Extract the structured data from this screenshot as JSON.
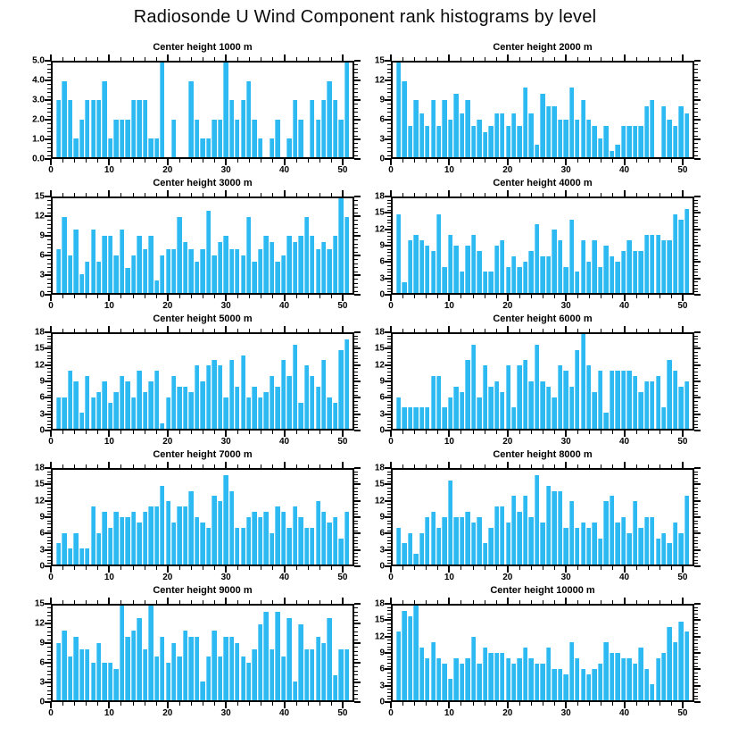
{
  "figure": {
    "title": "Radiosonde U Wind Component rank histograms by level"
  },
  "style": {
    "bar_color": "#2db9f1",
    "axis_color": "#000000",
    "background": "#ffffff"
  },
  "chart_data": [
    {
      "type": "bar",
      "title": "Center height 1000 m",
      "xlim": [
        0,
        52
      ],
      "xticks": [
        0,
        10,
        20,
        30,
        40,
        50
      ],
      "x_minor_step": 2,
      "ylim": [
        0,
        5
      ],
      "ytick_labels": [
        "0.0",
        "1.0",
        "2.0",
        "3.0",
        "4.0",
        "5.0"
      ],
      "ytick_values": [
        0,
        1,
        2,
        3,
        4,
        5
      ],
      "values": [
        3,
        4,
        3,
        1,
        2,
        3,
        3,
        3,
        4,
        1,
        2,
        2,
        2,
        3,
        3,
        3,
        1,
        1,
        5,
        0,
        2,
        0,
        0,
        4,
        2,
        1,
        1,
        2,
        2,
        5,
        3,
        2,
        3,
        4,
        2,
        1,
        0,
        1,
        2,
        0,
        1,
        3,
        2,
        0,
        3,
        2,
        3,
        4,
        3,
        2,
        5
      ]
    },
    {
      "type": "bar",
      "title": "Center height 2000 m",
      "xlim": [
        0,
        52
      ],
      "xticks": [
        0,
        10,
        20,
        30,
        40,
        50
      ],
      "x_minor_step": 2,
      "ylim": [
        0,
        15
      ],
      "ytick_labels": [
        "0",
        "3",
        "6",
        "9",
        "12",
        "15"
      ],
      "ytick_values": [
        0,
        3,
        6,
        9,
        12,
        15
      ],
      "values": [
        15,
        12,
        5,
        9,
        7,
        5,
        9,
        5,
        9,
        6,
        10,
        7,
        9,
        5,
        6,
        4,
        5,
        7,
        7,
        5,
        7,
        5,
        11,
        7,
        2,
        10,
        8,
        8,
        6,
        6,
        11,
        6,
        9,
        6,
        5,
        3,
        5,
        1,
        2,
        5,
        5,
        5,
        5,
        8,
        9,
        0,
        8,
        6,
        5,
        8,
        7
      ]
    },
    {
      "type": "bar",
      "title": "Center height 3000 m",
      "xlim": [
        0,
        52
      ],
      "xticks": [
        0,
        10,
        20,
        30,
        40,
        50
      ],
      "x_minor_step": 2,
      "ylim": [
        0,
        15
      ],
      "ytick_labels": [
        "0",
        "3",
        "6",
        "9",
        "12",
        "15"
      ],
      "ytick_values": [
        0,
        3,
        6,
        9,
        12,
        15
      ],
      "values": [
        7,
        12,
        6,
        10,
        3,
        5,
        10,
        5,
        9,
        9,
        6,
        10,
        4,
        6,
        9,
        7,
        9,
        2,
        6,
        7,
        7,
        12,
        8,
        7,
        5,
        7,
        13,
        6,
        8,
        9,
        7,
        7,
        6,
        12,
        5,
        7,
        9,
        8,
        5,
        6,
        9,
        8,
        9,
        12,
        9,
        7,
        8,
        7,
        9,
        15,
        12
      ]
    },
    {
      "type": "bar",
      "title": "Center height 4000 m",
      "xlim": [
        0,
        52
      ],
      "xticks": [
        0,
        10,
        20,
        30,
        40,
        50
      ],
      "x_minor_step": 2,
      "ylim": [
        0,
        18
      ],
      "ytick_labels": [
        "0",
        "3",
        "6",
        "9",
        "12",
        "15",
        "18"
      ],
      "ytick_values": [
        0,
        3,
        6,
        9,
        12,
        15,
        18
      ],
      "values": [
        15,
        2,
        10,
        11,
        10,
        9,
        8,
        15,
        5,
        11,
        9,
        4,
        9,
        11,
        8,
        4,
        4,
        9,
        10,
        5,
        7,
        5,
        6,
        8,
        13,
        7,
        7,
        12,
        10,
        5,
        14,
        4,
        10,
        6,
        10,
        5,
        9,
        7,
        6,
        8,
        10,
        8,
        8,
        11,
        11,
        11,
        10,
        10,
        15,
        14,
        16
      ]
    },
    {
      "type": "bar",
      "title": "Center height 5000 m",
      "xlim": [
        0,
        52
      ],
      "xticks": [
        0,
        10,
        20,
        30,
        40,
        50
      ],
      "x_minor_step": 2,
      "ylim": [
        0,
        18
      ],
      "ytick_labels": [
        "0",
        "3",
        "6",
        "9",
        "12",
        "15",
        "18"
      ],
      "ytick_values": [
        0,
        3,
        6,
        9,
        12,
        15,
        18
      ],
      "values": [
        6,
        6,
        11,
        9,
        3,
        10,
        6,
        7,
        9,
        5,
        7,
        10,
        9,
        6,
        11,
        7,
        9,
        11,
        1,
        6,
        10,
        8,
        8,
        7,
        12,
        9,
        12,
        13,
        12,
        6,
        13,
        8,
        14,
        6,
        8,
        6,
        7,
        10,
        8,
        13,
        10,
        16,
        5,
        12,
        10,
        8,
        13,
        6,
        5,
        15,
        17
      ]
    },
    {
      "type": "bar",
      "title": "Center height 6000 m",
      "xlim": [
        0,
        52
      ],
      "xticks": [
        0,
        10,
        20,
        30,
        40,
        50
      ],
      "x_minor_step": 2,
      "ylim": [
        0,
        18
      ],
      "ytick_labels": [
        "0",
        "3",
        "6",
        "9",
        "12",
        "15",
        "18"
      ],
      "ytick_values": [
        0,
        3,
        6,
        9,
        12,
        15,
        18
      ],
      "values": [
        6,
        4,
        4,
        4,
        4,
        4,
        10,
        10,
        4,
        6,
        8,
        7,
        13,
        16,
        6,
        12,
        8,
        9,
        7,
        12,
        4,
        12,
        13,
        9,
        16,
        9,
        8,
        6,
        12,
        11,
        8,
        15,
        18,
        12,
        7,
        11,
        3,
        11,
        11,
        11,
        11,
        10,
        7,
        9,
        9,
        10,
        4,
        13,
        11,
        8,
        9
      ]
    },
    {
      "type": "bar",
      "title": "Center height 7000 m",
      "xlim": [
        0,
        52
      ],
      "xticks": [
        0,
        10,
        20,
        30,
        40,
        50
      ],
      "x_minor_step": 2,
      "ylim": [
        0,
        18
      ],
      "ytick_labels": [
        "0",
        "3",
        "6",
        "9",
        "12",
        "15",
        "18"
      ],
      "ytick_values": [
        0,
        3,
        6,
        9,
        12,
        15,
        18
      ],
      "values": [
        4,
        6,
        3,
        6,
        3,
        3,
        11,
        6,
        10,
        7,
        10,
        9,
        9,
        10,
        8,
        10,
        11,
        11,
        15,
        12,
        8,
        11,
        11,
        14,
        9,
        8,
        7,
        13,
        12,
        17,
        14,
        7,
        7,
        9,
        10,
        9,
        10,
        6,
        11,
        10,
        7,
        11,
        9,
        7,
        7,
        12,
        10,
        8,
        9,
        5,
        10
      ]
    },
    {
      "type": "bar",
      "title": "Center height 8000 m",
      "xlim": [
        0,
        52
      ],
      "xticks": [
        0,
        10,
        20,
        30,
        40,
        50
      ],
      "x_minor_step": 2,
      "ylim": [
        0,
        18
      ],
      "ytick_labels": [
        "0",
        "3",
        "6",
        "9",
        "12",
        "15",
        "18"
      ],
      "ytick_values": [
        0,
        3,
        6,
        9,
        12,
        15,
        18
      ],
      "values": [
        7,
        4,
        6,
        2,
        6,
        9,
        10,
        7,
        9,
        16,
        9,
        9,
        10,
        8,
        9,
        4,
        7,
        11,
        11,
        8,
        13,
        10,
        13,
        9,
        17,
        8,
        15,
        14,
        14,
        7,
        12,
        7,
        8,
        7,
        8,
        5,
        12,
        13,
        8,
        9,
        6,
        12,
        7,
        9,
        9,
        5,
        6,
        4,
        8,
        6,
        13
      ]
    },
    {
      "type": "bar",
      "title": "Center height 9000 m",
      "xlim": [
        0,
        52
      ],
      "xticks": [
        0,
        10,
        20,
        30,
        40,
        50
      ],
      "x_minor_step": 2,
      "ylim": [
        0,
        15
      ],
      "ytick_labels": [
        "0",
        "3",
        "6",
        "9",
        "12",
        "15"
      ],
      "ytick_values": [
        0,
        3,
        6,
        9,
        12,
        15
      ],
      "values": [
        9,
        11,
        7,
        10,
        8,
        8,
        6,
        9,
        6,
        6,
        5,
        15,
        10,
        11,
        13,
        8,
        15,
        7,
        10,
        6,
        9,
        7,
        11,
        10,
        10,
        3,
        7,
        11,
        7,
        10,
        10,
        9,
        7,
        6,
        8,
        12,
        14,
        8,
        14,
        7,
        13,
        3,
        12,
        8,
        8,
        10,
        9,
        13,
        4,
        8,
        8
      ]
    },
    {
      "type": "bar",
      "title": "Center height 10000 m",
      "xlim": [
        0,
        52
      ],
      "xticks": [
        0,
        10,
        20,
        30,
        40,
        50
      ],
      "x_minor_step": 2,
      "ylim": [
        0,
        18
      ],
      "ytick_labels": [
        "0",
        "3",
        "6",
        "9",
        "12",
        "15",
        "18"
      ],
      "ytick_values": [
        0,
        3,
        6,
        9,
        12,
        15,
        18
      ],
      "values": [
        13,
        17,
        16,
        18,
        10,
        8,
        11,
        8,
        7,
        4,
        8,
        7,
        8,
        12,
        7,
        10,
        9,
        9,
        9,
        8,
        7,
        8,
        10,
        8,
        7,
        7,
        10,
        6,
        6,
        5,
        11,
        8,
        6,
        5,
        6,
        7,
        11,
        9,
        9,
        8,
        8,
        7,
        10,
        6,
        3,
        8,
        9,
        14,
        11,
        15,
        13
      ]
    }
  ]
}
